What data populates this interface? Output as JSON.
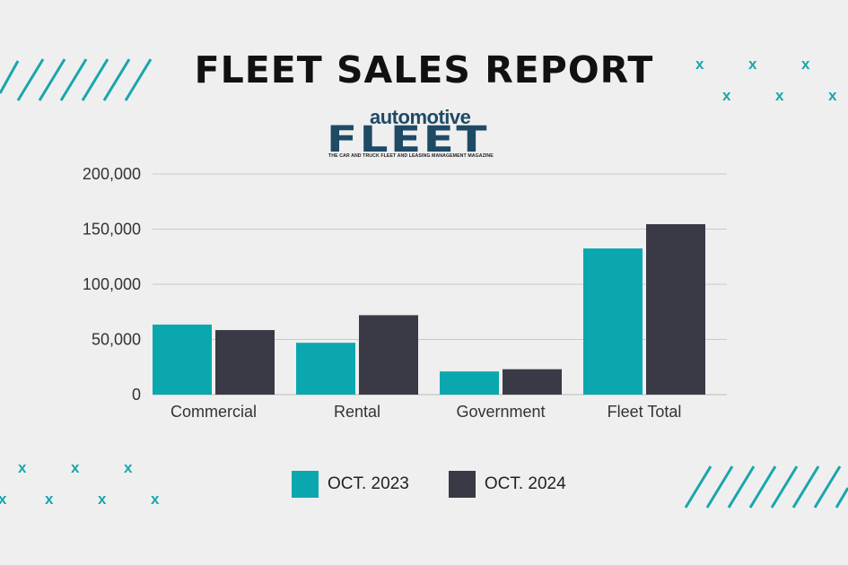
{
  "title": "FLEET SALES REPORT",
  "logo": {
    "top": "automotive",
    "main": "FLEET",
    "sub": "THE CAR AND TRUCK FLEET AND LEASING MANAGEMENT MAGAZINE"
  },
  "chart_data": {
    "type": "bar",
    "categories": [
      "Commercial",
      "Rental",
      "Government",
      "Fleet Total"
    ],
    "series": [
      {
        "name": "OCT. 2023",
        "values": [
          63500,
          47000,
          21000,
          132500
        ],
        "color": "#0aa8ae"
      },
      {
        "name": "OCT. 2024",
        "values": [
          58500,
          72000,
          23000,
          154500
        ],
        "color": "#393a45"
      }
    ],
    "ylim": [
      0,
      200000
    ],
    "yticks": [
      0,
      50000,
      100000,
      150000,
      200000
    ],
    "ytick_labels": [
      "0",
      "50,000",
      "100,000",
      "150,000",
      "200,000"
    ],
    "grid": true,
    "legend_position": "bottom"
  },
  "decor": {
    "accent_color": "#19a6ac",
    "x_mark": "x"
  }
}
